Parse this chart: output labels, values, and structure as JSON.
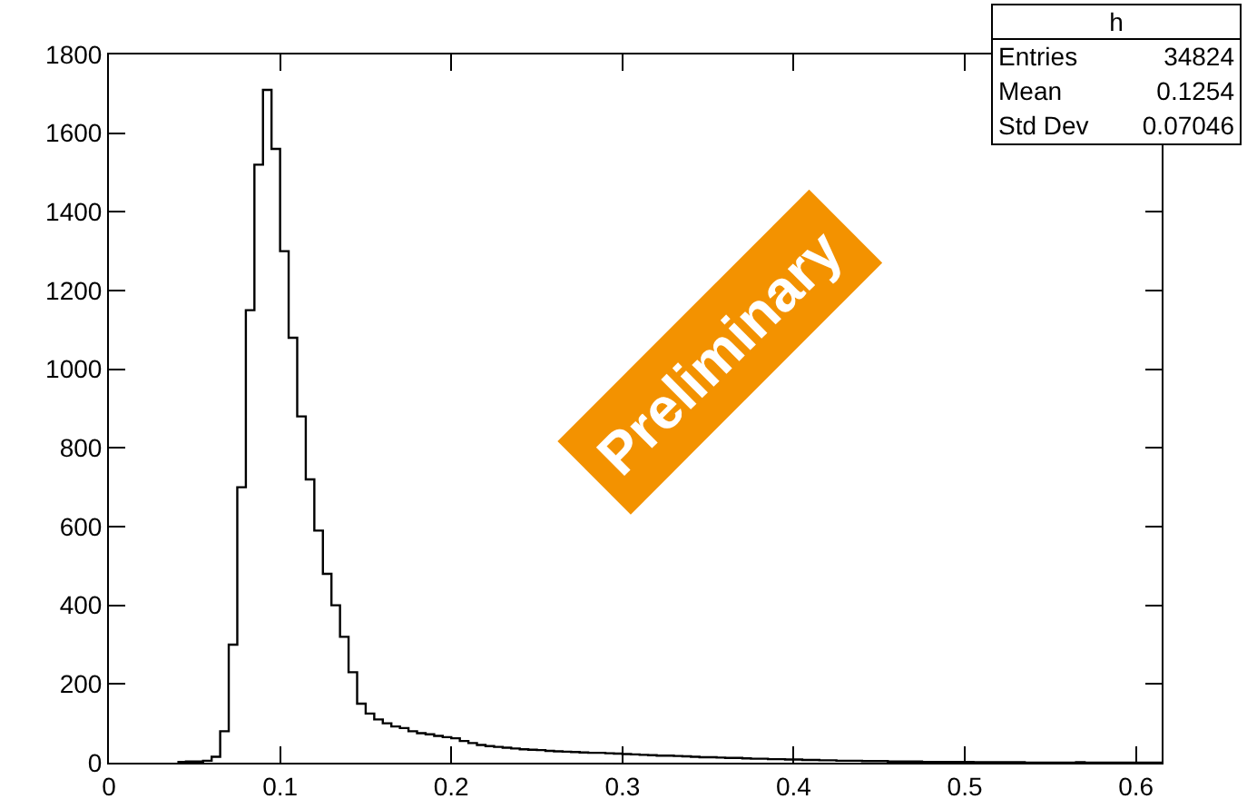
{
  "chart_data": {
    "type": "histogram",
    "bins": [
      0.04,
      0.045,
      0.05,
      0.055,
      0.06,
      0.065,
      0.07,
      0.075,
      0.08,
      0.085,
      0.09,
      0.095,
      0.1,
      0.105,
      0.11,
      0.115,
      0.12,
      0.125,
      0.13,
      0.135,
      0.14,
      0.145,
      0.15,
      0.155,
      0.16,
      0.165,
      0.17,
      0.175,
      0.18,
      0.185,
      0.19,
      0.195,
      0.2,
      0.205,
      0.21,
      0.215,
      0.22,
      0.225,
      0.23,
      0.235,
      0.24,
      0.245,
      0.25,
      0.255,
      0.26,
      0.265,
      0.27,
      0.275,
      0.28,
      0.285,
      0.29,
      0.295,
      0.3,
      0.305,
      0.31,
      0.315,
      0.32,
      0.325,
      0.33,
      0.335,
      0.34,
      0.345,
      0.35,
      0.355,
      0.36,
      0.365,
      0.37,
      0.375,
      0.38,
      0.385,
      0.39,
      0.395,
      0.4,
      0.405,
      0.41,
      0.415,
      0.42,
      0.425,
      0.43,
      0.435,
      0.44,
      0.445,
      0.45,
      0.455,
      0.46,
      0.465,
      0.47,
      0.475,
      0.48,
      0.485,
      0.49,
      0.495,
      0.5,
      0.505,
      0.51,
      0.515,
      0.52,
      0.525,
      0.53,
      0.535,
      0.54,
      0.545,
      0.55,
      0.555,
      0.56,
      0.565,
      0.57,
      0.575,
      0.58,
      0.585,
      0.59,
      0.595,
      0.6,
      0.605,
      0.61,
      0.615
    ],
    "values": [
      2,
      3,
      3,
      5,
      15,
      80,
      300,
      700,
      1150,
      1520,
      1710,
      1560,
      1300,
      1080,
      880,
      720,
      590,
      480,
      400,
      320,
      230,
      150,
      125,
      110,
      100,
      92,
      88,
      80,
      75,
      72,
      68,
      65,
      62,
      55,
      50,
      45,
      42,
      40,
      38,
      36,
      34,
      33,
      32,
      30,
      29,
      28,
      27,
      26,
      25,
      25,
      24,
      23,
      22,
      21,
      20,
      19,
      18,
      18,
      17,
      16,
      15,
      14,
      14,
      13,
      12,
      12,
      11,
      10,
      10,
      9,
      9,
      8,
      8,
      7,
      7,
      6,
      6,
      5,
      5,
      5,
      4,
      4,
      4,
      3,
      3,
      3,
      3,
      2,
      2,
      2,
      2,
      2,
      2,
      1,
      1,
      1,
      1,
      1,
      1,
      0,
      0,
      0,
      0,
      0,
      0,
      1,
      0,
      0,
      0,
      0,
      0,
      0,
      0,
      0,
      0
    ],
    "color": "#000000",
    "xlim": [
      0,
      0.615
    ],
    "xticks": [
      0,
      0.1,
      0.2,
      0.3,
      0.4,
      0.5,
      0.6
    ],
    "ylim": [
      0,
      1800
    ],
    "yticks": [
      0,
      200,
      400,
      600,
      800,
      1000,
      1200,
      1400,
      1600,
      1800
    ],
    "grid": false,
    "annotations": [
      "h",
      "Entries",
      "34824",
      "Mean",
      "0.1254",
      "Std Dev",
      "0.07046",
      "Preliminary"
    ]
  }
}
